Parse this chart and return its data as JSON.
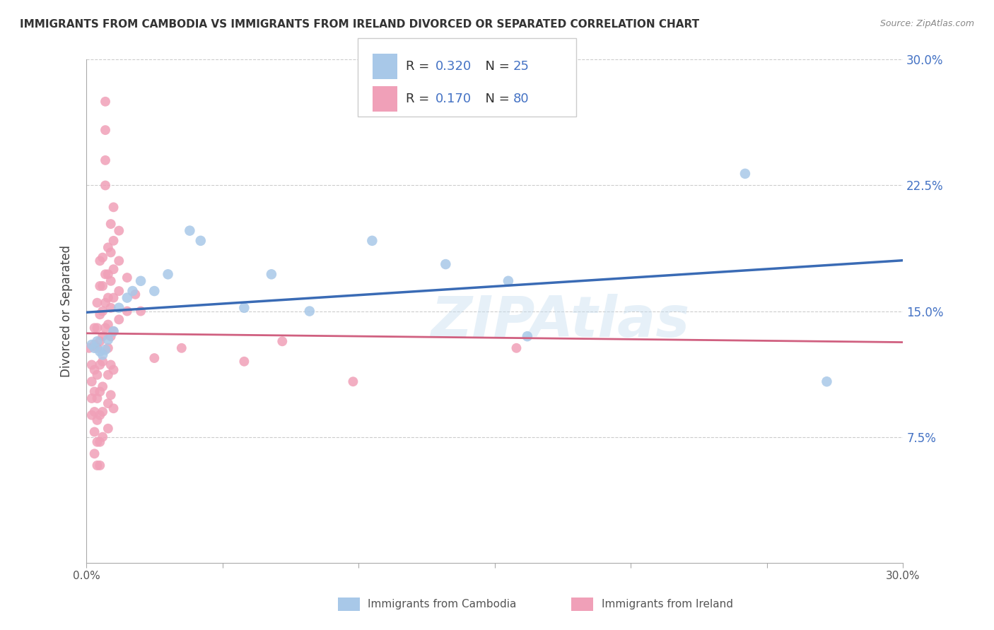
{
  "title": "IMMIGRANTS FROM CAMBODIA VS IMMIGRANTS FROM IRELAND DIVORCED OR SEPARATED CORRELATION CHART",
  "source": "Source: ZipAtlas.com",
  "ylabel": "Divorced or Separated",
  "xlim": [
    0.0,
    0.3
  ],
  "ylim": [
    0.0,
    0.3
  ],
  "color_cambodia": "#a8c8e8",
  "color_ireland": "#f0a0b8",
  "R_cambodia": 0.32,
  "N_cambodia": 25,
  "R_ireland": 0.17,
  "N_ireland": 80,
  "trend_cambodia_color": "#3a6bb5",
  "trend_ireland_color": "#d06080",
  "watermark": "ZIPAtlas",
  "cambodia_points": [
    [
      0.002,
      0.13
    ],
    [
      0.003,
      0.128
    ],
    [
      0.004,
      0.132
    ],
    [
      0.005,
      0.126
    ],
    [
      0.006,
      0.124
    ],
    [
      0.007,
      0.127
    ],
    [
      0.008,
      0.133
    ],
    [
      0.01,
      0.138
    ],
    [
      0.012,
      0.152
    ],
    [
      0.015,
      0.158
    ],
    [
      0.017,
      0.162
    ],
    [
      0.02,
      0.168
    ],
    [
      0.025,
      0.162
    ],
    [
      0.03,
      0.172
    ],
    [
      0.038,
      0.198
    ],
    [
      0.042,
      0.192
    ],
    [
      0.058,
      0.152
    ],
    [
      0.068,
      0.172
    ],
    [
      0.082,
      0.15
    ],
    [
      0.105,
      0.192
    ],
    [
      0.132,
      0.178
    ],
    [
      0.155,
      0.168
    ],
    [
      0.162,
      0.135
    ],
    [
      0.242,
      0.232
    ],
    [
      0.272,
      0.108
    ]
  ],
  "ireland_points": [
    [
      0.001,
      0.128
    ],
    [
      0.002,
      0.118
    ],
    [
      0.002,
      0.108
    ],
    [
      0.002,
      0.098
    ],
    [
      0.002,
      0.088
    ],
    [
      0.003,
      0.14
    ],
    [
      0.003,
      0.13
    ],
    [
      0.003,
      0.115
    ],
    [
      0.003,
      0.102
    ],
    [
      0.003,
      0.09
    ],
    [
      0.003,
      0.078
    ],
    [
      0.003,
      0.065
    ],
    [
      0.004,
      0.155
    ],
    [
      0.004,
      0.14
    ],
    [
      0.004,
      0.128
    ],
    [
      0.004,
      0.112
    ],
    [
      0.004,
      0.098
    ],
    [
      0.004,
      0.085
    ],
    [
      0.004,
      0.072
    ],
    [
      0.004,
      0.058
    ],
    [
      0.005,
      0.18
    ],
    [
      0.005,
      0.165
    ],
    [
      0.005,
      0.148
    ],
    [
      0.005,
      0.132
    ],
    [
      0.005,
      0.118
    ],
    [
      0.005,
      0.102
    ],
    [
      0.005,
      0.088
    ],
    [
      0.005,
      0.072
    ],
    [
      0.005,
      0.058
    ],
    [
      0.006,
      0.182
    ],
    [
      0.006,
      0.165
    ],
    [
      0.006,
      0.15
    ],
    [
      0.006,
      0.135
    ],
    [
      0.006,
      0.12
    ],
    [
      0.006,
      0.105
    ],
    [
      0.006,
      0.09
    ],
    [
      0.006,
      0.075
    ],
    [
      0.007,
      0.275
    ],
    [
      0.007,
      0.258
    ],
    [
      0.007,
      0.24
    ],
    [
      0.007,
      0.225
    ],
    [
      0.007,
      0.172
    ],
    [
      0.007,
      0.155
    ],
    [
      0.007,
      0.14
    ],
    [
      0.008,
      0.188
    ],
    [
      0.008,
      0.172
    ],
    [
      0.008,
      0.158
    ],
    [
      0.008,
      0.142
    ],
    [
      0.008,
      0.128
    ],
    [
      0.008,
      0.112
    ],
    [
      0.008,
      0.095
    ],
    [
      0.008,
      0.08
    ],
    [
      0.009,
      0.202
    ],
    [
      0.009,
      0.185
    ],
    [
      0.009,
      0.168
    ],
    [
      0.009,
      0.152
    ],
    [
      0.009,
      0.135
    ],
    [
      0.009,
      0.118
    ],
    [
      0.009,
      0.1
    ],
    [
      0.01,
      0.212
    ],
    [
      0.01,
      0.192
    ],
    [
      0.01,
      0.175
    ],
    [
      0.01,
      0.158
    ],
    [
      0.01,
      0.138
    ],
    [
      0.01,
      0.115
    ],
    [
      0.01,
      0.092
    ],
    [
      0.012,
      0.198
    ],
    [
      0.012,
      0.18
    ],
    [
      0.012,
      0.162
    ],
    [
      0.012,
      0.145
    ],
    [
      0.015,
      0.17
    ],
    [
      0.015,
      0.15
    ],
    [
      0.018,
      0.16
    ],
    [
      0.02,
      0.15
    ],
    [
      0.025,
      0.122
    ],
    [
      0.035,
      0.128
    ],
    [
      0.058,
      0.12
    ],
    [
      0.072,
      0.132
    ],
    [
      0.098,
      0.108
    ],
    [
      0.158,
      0.128
    ]
  ]
}
